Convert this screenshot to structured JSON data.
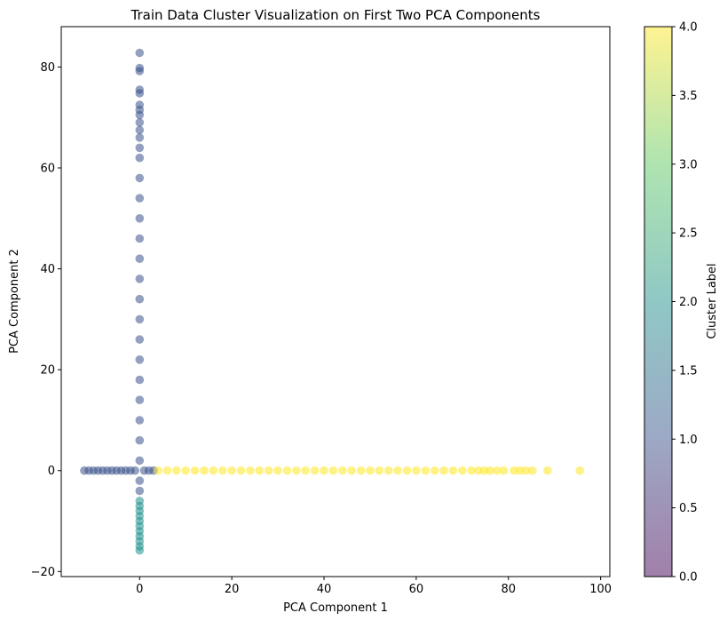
{
  "chart_data": {
    "type": "scatter",
    "title": "Train Data Cluster Visualization on First Two PCA Components",
    "xlabel": "PCA Component 1",
    "ylabel": "PCA Component 2",
    "xlim": [
      -17,
      102
    ],
    "ylim": [
      -21,
      88
    ],
    "xticks": [
      0,
      20,
      40,
      60,
      80,
      100
    ],
    "yticks": [
      -20,
      0,
      20,
      40,
      60,
      80
    ],
    "grid": false,
    "marker_alpha": 0.55,
    "colormap": "viridis",
    "colorbar": {
      "label": "Cluster Label",
      "range": [
        0.0,
        4.0
      ],
      "ticks": [
        "0.0",
        "0.5",
        "1.0",
        "1.5",
        "2.0",
        "2.5",
        "3.0",
        "3.5",
        "4.0"
      ],
      "colors": [
        "#440154",
        "#3b528b",
        "#21918c",
        "#5ec962",
        "#fde725"
      ]
    },
    "series": [
      {
        "cluster": 1,
        "color": "#3b528b",
        "points": [
          [
            0,
            -4
          ],
          [
            0,
            -2
          ],
          [
            0,
            2
          ],
          [
            0,
            6
          ],
          [
            0,
            10
          ],
          [
            0,
            14
          ],
          [
            0,
            18
          ],
          [
            0,
            22
          ],
          [
            0,
            26
          ],
          [
            0,
            30
          ],
          [
            0,
            34
          ],
          [
            0,
            38
          ],
          [
            0,
            42
          ],
          [
            0,
            46
          ],
          [
            0,
            50
          ],
          [
            0,
            54
          ],
          [
            0,
            58
          ],
          [
            0,
            62
          ],
          [
            0,
            64
          ],
          [
            0,
            66
          ],
          [
            0,
            67.5
          ],
          [
            0,
            69
          ],
          [
            0,
            70.5
          ],
          [
            0,
            71.5
          ],
          [
            0,
            72.5
          ],
          [
            0,
            74.8
          ],
          [
            0,
            75.5
          ],
          [
            0,
            79.2
          ],
          [
            0,
            79.8
          ],
          [
            0,
            82.8
          ],
          [
            -12,
            0
          ],
          [
            -11,
            0
          ],
          [
            -10,
            0
          ],
          [
            -9,
            0
          ],
          [
            -8,
            0
          ],
          [
            -7,
            0
          ],
          [
            -6,
            0
          ],
          [
            -5,
            0
          ],
          [
            -4,
            0
          ],
          [
            -3,
            0
          ],
          [
            -2,
            0
          ],
          [
            -1,
            0
          ],
          [
            1,
            0
          ],
          [
            2,
            0
          ],
          [
            3,
            0
          ]
        ]
      },
      {
        "cluster": 2,
        "color": "#21918c",
        "points": [
          [
            0,
            -6
          ],
          [
            0,
            -7
          ],
          [
            0,
            -8
          ],
          [
            0,
            -9
          ],
          [
            0,
            -10
          ],
          [
            0,
            -11
          ],
          [
            0,
            -12
          ],
          [
            0,
            -13
          ],
          [
            0,
            -14
          ],
          [
            0,
            -15
          ],
          [
            0,
            -15.8
          ]
        ]
      },
      {
        "cluster": 4,
        "color": "#fde725",
        "points": [
          [
            4,
            0
          ],
          [
            6,
            0
          ],
          [
            8,
            0
          ],
          [
            10,
            0
          ],
          [
            12,
            0
          ],
          [
            14,
            0
          ],
          [
            16,
            0
          ],
          [
            18,
            0
          ],
          [
            20,
            0
          ],
          [
            22,
            0
          ],
          [
            24,
            0
          ],
          [
            26,
            0
          ],
          [
            28,
            0
          ],
          [
            30,
            0
          ],
          [
            32,
            0
          ],
          [
            34,
            0
          ],
          [
            36,
            0
          ],
          [
            38,
            0
          ],
          [
            40,
            0
          ],
          [
            42,
            0
          ],
          [
            44,
            0
          ],
          [
            46,
            0
          ],
          [
            48,
            0
          ],
          [
            50,
            0
          ],
          [
            52,
            0
          ],
          [
            54,
            0
          ],
          [
            56,
            0
          ],
          [
            58,
            0
          ],
          [
            60,
            0
          ],
          [
            62,
            0
          ],
          [
            64,
            0
          ],
          [
            66,
            0
          ],
          [
            68,
            0
          ],
          [
            70,
            0
          ],
          [
            72,
            0
          ],
          [
            73.5,
            0
          ],
          [
            74.8,
            0
          ],
          [
            76,
            0
          ],
          [
            77.5,
            0
          ],
          [
            79,
            0
          ],
          [
            81.2,
            0
          ],
          [
            82.5,
            0
          ],
          [
            83.8,
            0
          ],
          [
            85.2,
            0
          ],
          [
            88.5,
            0
          ],
          [
            95.5,
            0
          ]
        ]
      },
      {
        "cluster": 0,
        "color": "#440154",
        "points": []
      }
    ]
  }
}
